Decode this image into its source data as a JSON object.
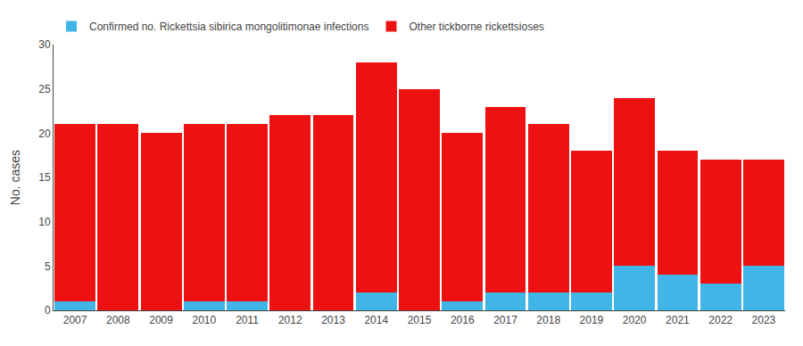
{
  "chart_data": {
    "type": "bar",
    "stacked": true,
    "categories": [
      "2007",
      "2008",
      "2009",
      "2010",
      "2011",
      "2012",
      "2013",
      "2014",
      "2015",
      "2016",
      "2017",
      "2018",
      "2019",
      "2020",
      "2021",
      "2022",
      "2023"
    ],
    "series": [
      {
        "name": "Confirmed no. Rickettsia sibirica mongolitimonae infections",
        "color": "#41B6E6",
        "values": [
          1,
          0,
          0,
          1,
          1,
          0,
          0,
          2,
          0,
          1,
          2,
          2,
          2,
          5,
          4,
          3,
          5
        ]
      },
      {
        "name": "Other tickborne rickettsioses",
        "color": "#EE1111",
        "values": [
          20,
          21,
          20,
          20,
          20,
          22,
          22,
          26,
          25,
          19,
          21,
          19,
          16,
          19,
          14,
          14,
          12
        ]
      }
    ],
    "ylabel": "No. cases",
    "ylim": [
      0,
      30
    ],
    "yticks": [
      0,
      5,
      10,
      15,
      20,
      25,
      30
    ],
    "grid": false,
    "legend": "upper left"
  }
}
